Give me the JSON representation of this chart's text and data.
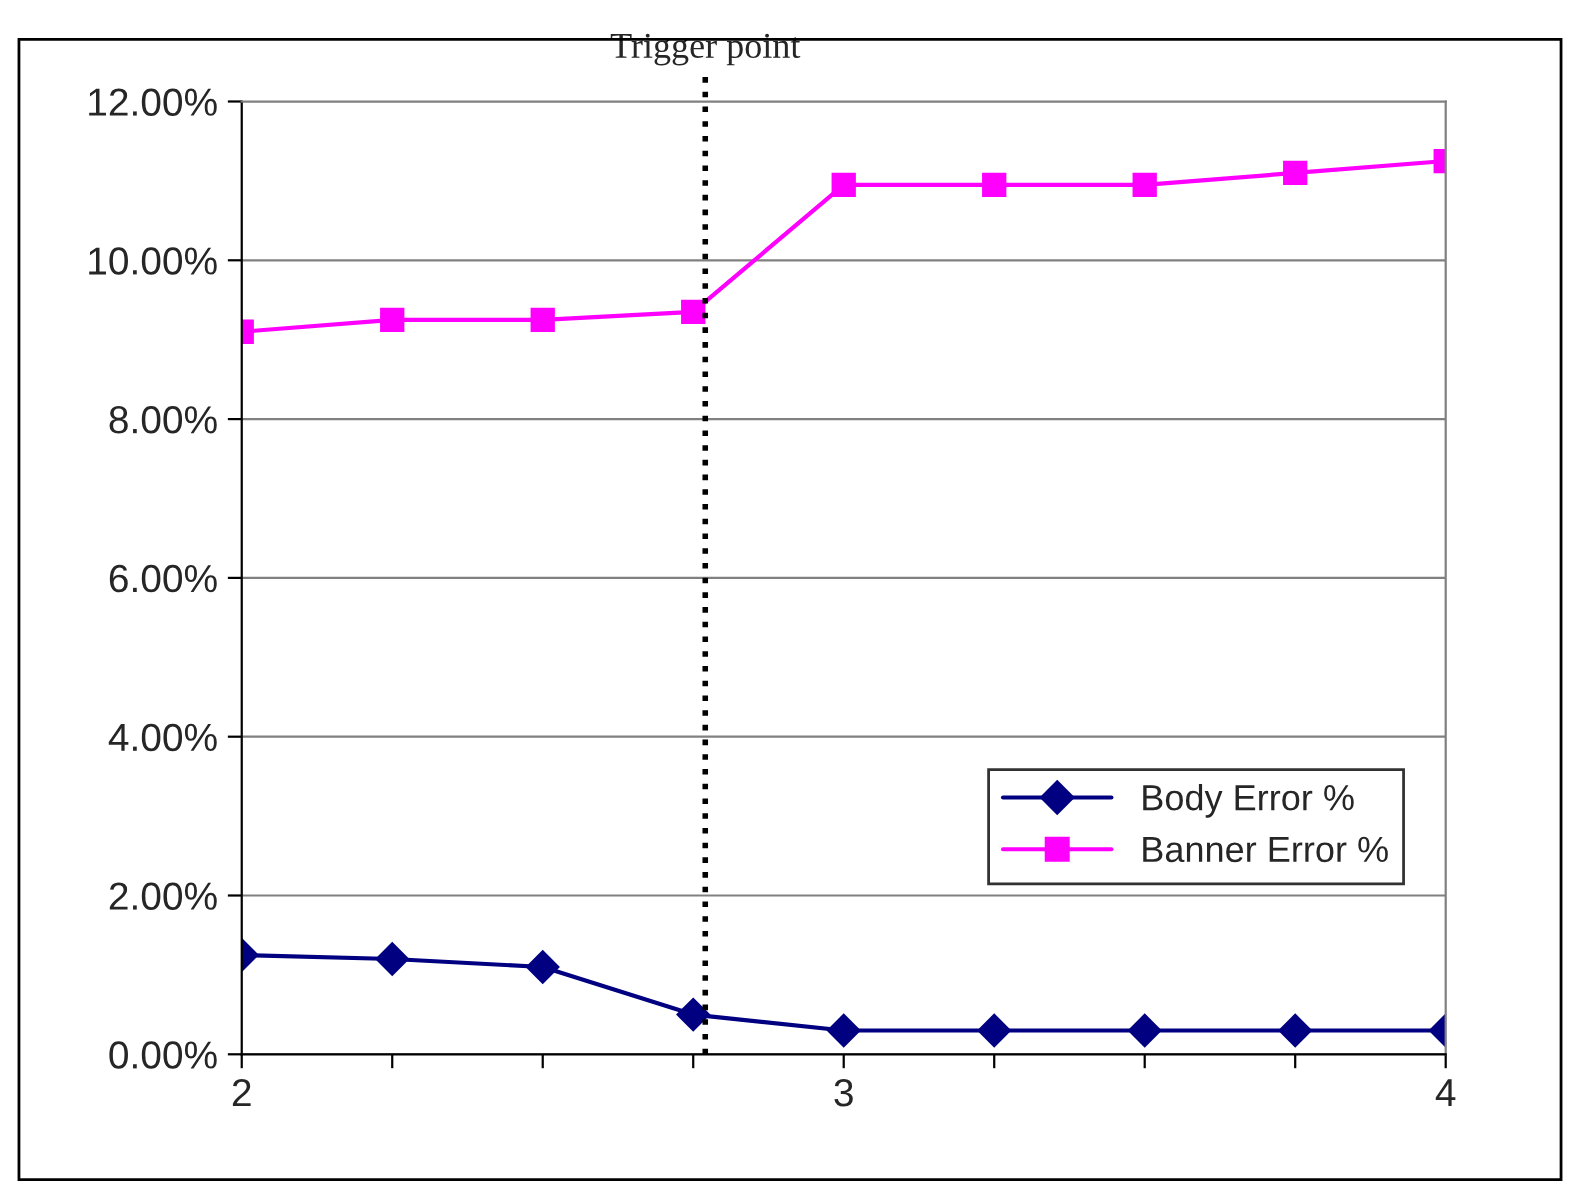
{
  "chart_data": {
    "type": "line",
    "x": [
      2,
      2.25,
      2.5,
      2.75,
      3,
      3.25,
      3.5,
      3.75,
      4
    ],
    "series": [
      {
        "name": "Body Error %",
        "color": "#000080",
        "marker": "diamond",
        "values": [
          1.25,
          1.2,
          1.1,
          0.5,
          0.3,
          0.3,
          0.3,
          0.3,
          0.3
        ]
      },
      {
        "name": "Banner Error %",
        "color": "#ff00ff",
        "marker": "square",
        "values": [
          9.1,
          9.25,
          9.25,
          9.35,
          10.95,
          10.95,
          10.95,
          11.1,
          11.25
        ]
      }
    ],
    "xlim": [
      2,
      4
    ],
    "xticks": [
      2,
      {
        "value": 2.25,
        "label": null
      },
      {
        "value": 2.5,
        "label": null
      },
      {
        "value": 2.75,
        "label": null
      },
      3,
      {
        "value": 3.25,
        "label": null
      },
      {
        "value": 3.5,
        "label": null
      },
      {
        "value": 3.75,
        "label": null
      },
      4
    ],
    "ylim": [
      0,
      12
    ],
    "yticks": [
      {
        "value": 0,
        "label": "0.00%"
      },
      {
        "value": 2,
        "label": "2.00%"
      },
      {
        "value": 4,
        "label": "4.00%"
      },
      {
        "value": 6,
        "label": "6.00%"
      },
      {
        "value": 8,
        "label": "8.00%"
      },
      {
        "value": 10,
        "label": "10.00%"
      },
      {
        "value": 12,
        "label": "12.00%"
      }
    ],
    "ref_lines": [
      {
        "axis": "x",
        "value": 2.77,
        "label": "Trigger point",
        "color": "#000000",
        "line_style": "dotted"
      }
    ],
    "grid": "y",
    "legend": "lower right",
    "line_style": "solid"
  }
}
